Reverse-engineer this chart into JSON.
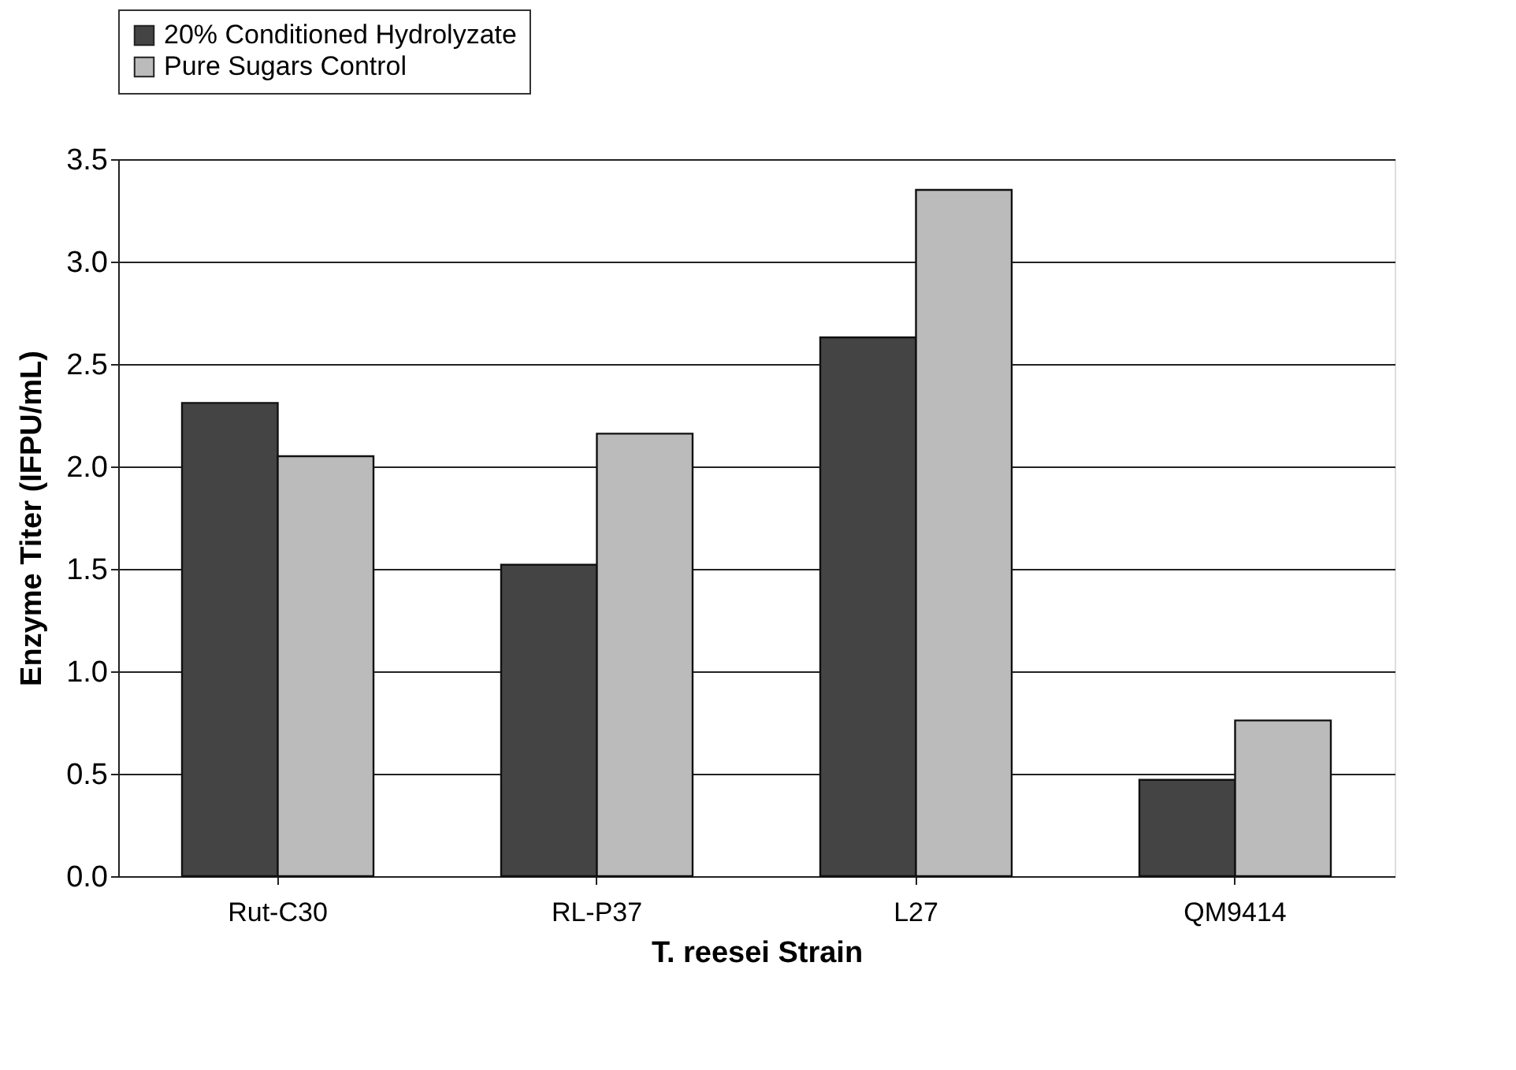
{
  "chart_data": {
    "type": "bar",
    "xlabel": "T. reesei Strain",
    "ylabel": "Enzyme Titer (IFPU/mL)",
    "categories": [
      "Rut-C30",
      "RL-P37",
      "L27",
      "QM9414"
    ],
    "series": [
      {
        "name": "20% Conditioned Hydrolyzate",
        "color": "#444444",
        "values": [
          2.31,
          1.52,
          2.63,
          0.47
        ]
      },
      {
        "name": "Pure Sugars Control",
        "color": "#bbbbbb",
        "values": [
          2.05,
          2.16,
          3.35,
          0.76
        ]
      }
    ],
    "ylim": [
      0,
      3.5
    ],
    "yticks": [
      {
        "value": 0,
        "label": "0.0"
      },
      0.5,
      {
        "value": 1,
        "label": "1.0"
      },
      1.5,
      {
        "value": 2,
        "label": "2.0"
      },
      2.5,
      {
        "value": 3,
        "label": "3.0"
      },
      3.5
    ],
    "grid": "y",
    "legend": "top left"
  }
}
